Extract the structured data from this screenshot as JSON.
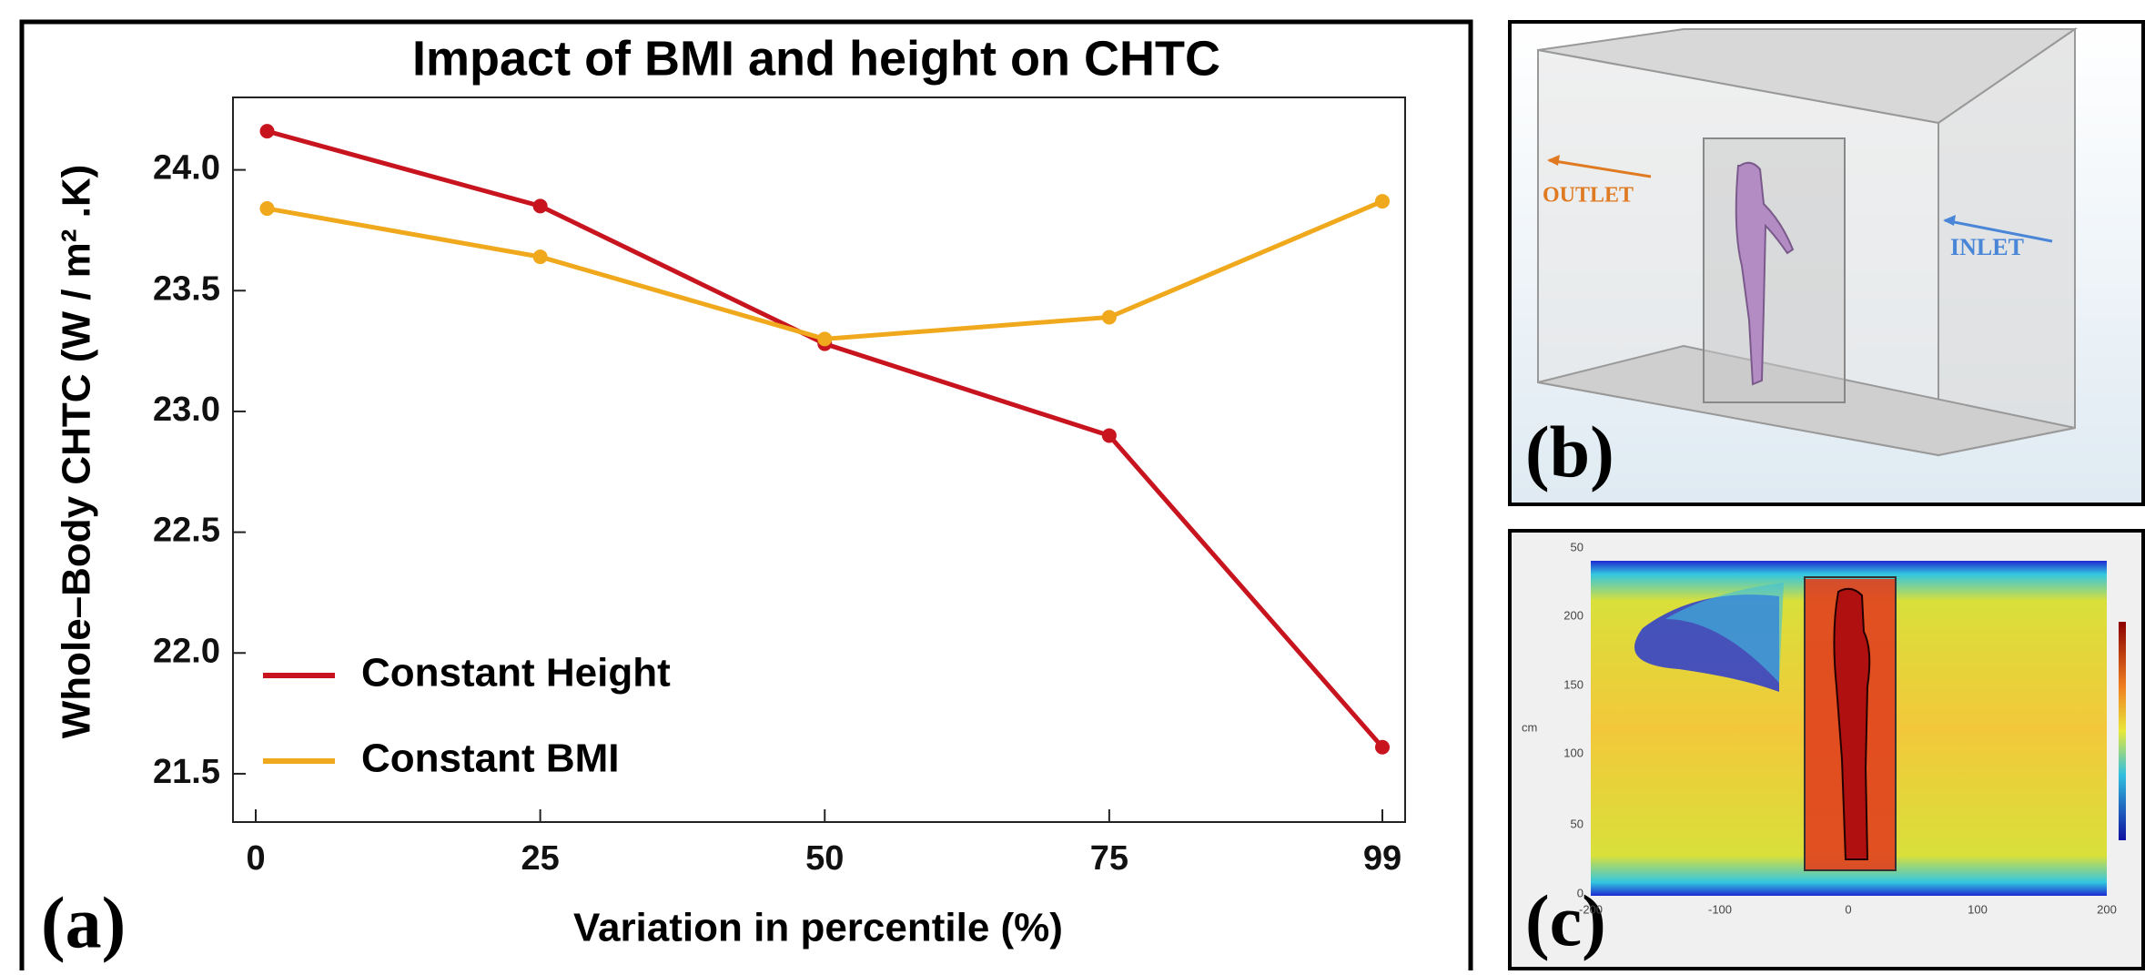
{
  "chart_data": {
    "type": "line",
    "title": "Impact of BMI and height on CHTC",
    "x_label": "Variation in percentile (%)",
    "y_label": "Whole–Body CHTC (W / m² .K)",
    "x": [
      1,
      25,
      50,
      75,
      99
    ],
    "series": [
      {
        "name": "Constant Height",
        "color": "#c8141e",
        "values": [
          24.16,
          23.85,
          23.28,
          22.9,
          21.61
        ]
      },
      {
        "name": "Constant BMI",
        "color": "#f0a81c",
        "values": [
          23.84,
          23.64,
          23.3,
          23.39,
          23.87
        ]
      }
    ],
    "xlim": [
      -2,
      101
    ],
    "xticks": [
      0,
      25,
      50,
      75,
      99
    ],
    "ylim": [
      21.3,
      24.3
    ],
    "yticks": [
      21.5,
      {
        "value": 22,
        "label": "22.0"
      },
      22.5,
      {
        "value": 23,
        "label": "23.0"
      },
      23.5,
      {
        "value": 24,
        "label": "24.0"
      }
    ],
    "legend": "lower left",
    "grid": false
  },
  "panels": {
    "a": "(a)",
    "b": "(b)",
    "c": "(c)",
    "outlet": "OUTLET",
    "inlet": "INLET",
    "c_yticks": [
      "50",
      "200",
      "150",
      "100",
      "50",
      "0"
    ],
    "c_xticks": [
      "-200",
      "-100",
      "0",
      "100",
      "200"
    ],
    "c_unit": "cm"
  }
}
